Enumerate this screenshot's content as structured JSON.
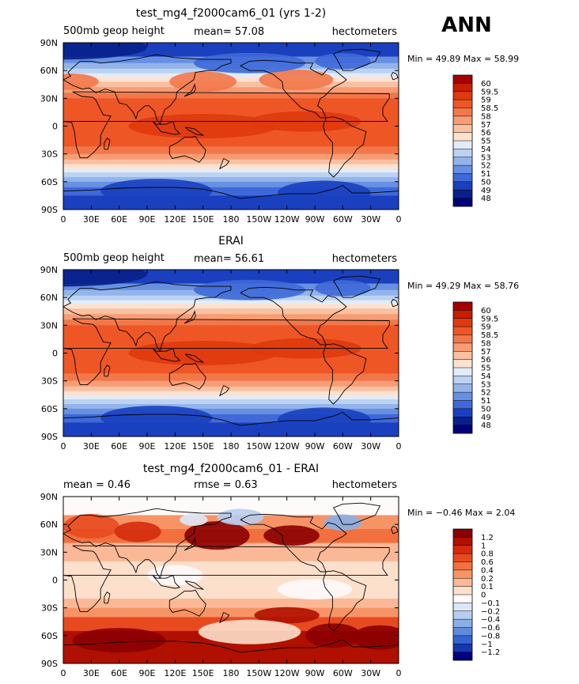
{
  "season": "ANN",
  "x_ticks": [
    "0",
    "30E",
    "60E",
    "90E",
    "120E",
    "150E",
    "180",
    "150W",
    "120W",
    "90W",
    "60W",
    "30W",
    "0"
  ],
  "y_ticks": [
    "90N",
    "60N",
    "30N",
    "0",
    "30S",
    "60S",
    "90S"
  ],
  "chart_data": [
    {
      "type": "heatmap",
      "title": "test_mg4_f2000cam6_01 (yrs 1-2)",
      "left_label": "500mb geop height",
      "mean_text": "mean=   57.08",
      "units": "hectometers",
      "minmax_text": "Min =   49.89  Max =   58.99",
      "min": 49.89,
      "max": 58.99,
      "mean": 57.08,
      "xlim": [
        0,
        360
      ],
      "ylim": [
        -90,
        90
      ],
      "colorbar_levels": [
        "60",
        "59.5",
        "59",
        "58.5",
        "58",
        "57",
        "56",
        "55",
        "54",
        "53",
        "52",
        "51",
        "50",
        "49",
        "48"
      ],
      "colorbar_colors": [
        "#a50000",
        "#c81e00",
        "#de3a0e",
        "#ee5626",
        "#f2784a",
        "#f79c75",
        "#fac0a2",
        "#fde2d0",
        "#e2ecf9",
        "#bcd2f2",
        "#93b4ea",
        "#6890e2",
        "#3f69d8",
        "#1a40bf",
        "#08208a",
        "#00007a"
      ]
    },
    {
      "type": "heatmap",
      "title": "ERAI",
      "left_label": "500mb geop height",
      "mean_text": "mean=   56.61",
      "units": "hectometers",
      "minmax_text": "Min =   49.29  Max =   58.76",
      "min": 49.29,
      "max": 58.76,
      "mean": 56.61,
      "xlim": [
        0,
        360
      ],
      "ylim": [
        -90,
        90
      ],
      "colorbar_levels": [
        "60",
        "59.5",
        "59",
        "58.5",
        "58",
        "57",
        "56",
        "55",
        "54",
        "53",
        "52",
        "51",
        "50",
        "49",
        "48"
      ],
      "colorbar_colors": [
        "#a50000",
        "#c81e00",
        "#de3a0e",
        "#ee5626",
        "#f2784a",
        "#f79c75",
        "#fac0a2",
        "#fde2d0",
        "#e2ecf9",
        "#bcd2f2",
        "#93b4ea",
        "#6890e2",
        "#3f69d8",
        "#1a40bf",
        "#08208a",
        "#00007a"
      ]
    },
    {
      "type": "heatmap",
      "title": "test_mg4_f2000cam6_01 - ERAI",
      "left_label": "mean =     0.46",
      "mean_text": "rmse =     0.63",
      "units": "hectometers",
      "minmax_text": "Min =   −0.46  Max =     2.04",
      "min": -0.46,
      "max": 2.04,
      "mean": 0.46,
      "rmse": 0.63,
      "xlim": [
        0,
        360
      ],
      "ylim": [
        -90,
        90
      ],
      "colorbar_levels": [
        "1.2",
        "1",
        "0.8",
        "0.6",
        "0.4",
        "0.2",
        "0.1",
        "0",
        "−0.1",
        "−0.2",
        "−0.4",
        "−0.6",
        "−0.8",
        "−1",
        "−1.2"
      ],
      "colorbar_colors": [
        "#8b0000",
        "#b01000",
        "#d42b0c",
        "#e84a20",
        "#f2703e",
        "#f79466",
        "#fbb896",
        "#fde0cc",
        "#fffafa",
        "#dde7f8",
        "#b7cdf0",
        "#8aaee6",
        "#5e8cdc",
        "#3364d0",
        "#1537b0",
        "#000080"
      ]
    }
  ]
}
